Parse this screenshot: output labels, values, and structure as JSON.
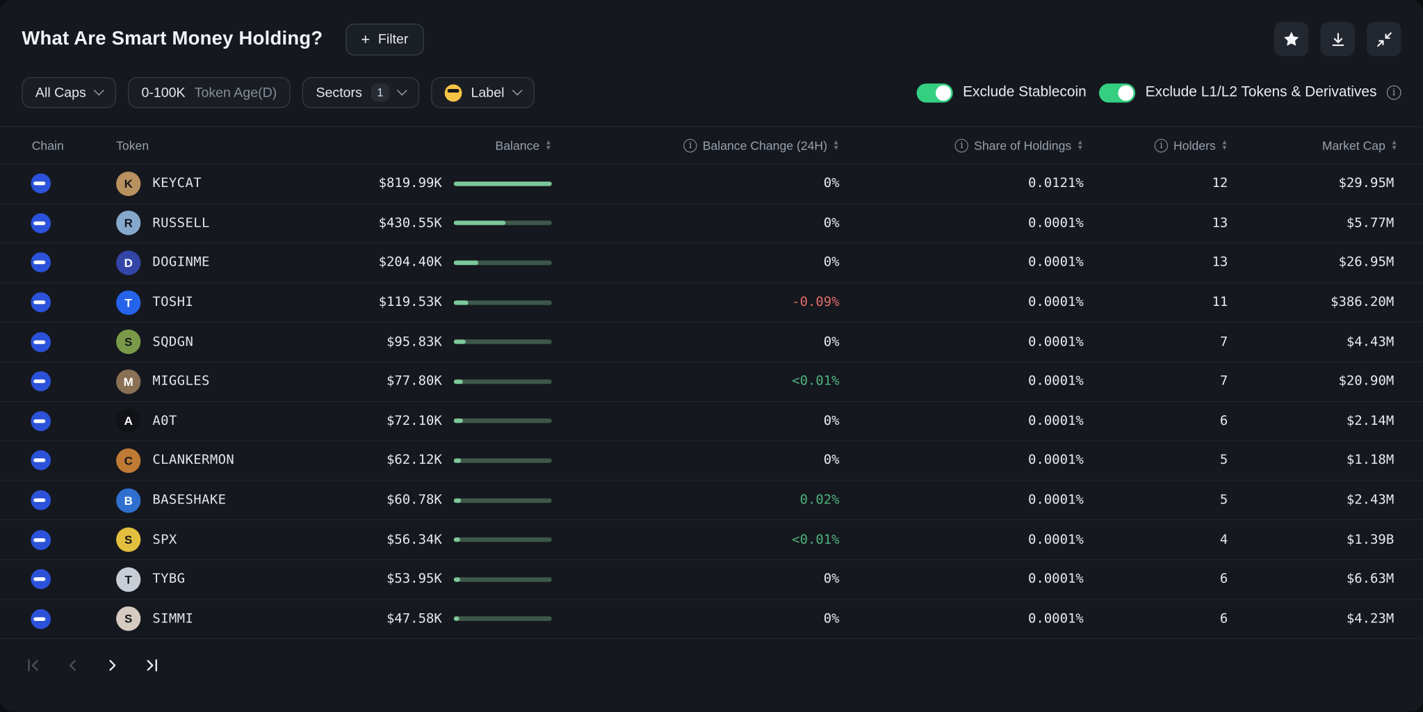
{
  "header": {
    "title": "What Are Smart Money Holding?",
    "filter_button_label": "Filter",
    "plus_glyph": "+"
  },
  "filters": {
    "market_cap_label": "All Caps",
    "token_age_value": "0-100K",
    "token_age_label": "Token Age(D)",
    "sectors_label": "Sectors",
    "sectors_badge": "1",
    "label_label": "Label",
    "toggles": [
      {
        "label": "Exclude Stablecoin",
        "on": true
      },
      {
        "label": "Exclude L1/L2 Tokens & Derivatives",
        "on": true
      }
    ],
    "info_glyph": "i"
  },
  "table": {
    "columns": {
      "chain": "Chain",
      "token": "Token",
      "balance": "Balance",
      "change": "Balance Change (24H)",
      "share": "Share of Holdings",
      "holders": "Holders",
      "market_cap": "Market Cap"
    },
    "rows": [
      {
        "token": "KEYCAT",
        "balance": "$819.99K",
        "bar_percent": 100,
        "change": "0%",
        "change_type": "neutral",
        "share": "0.0121%",
        "holders": "12",
        "market_cap": "$29.95M",
        "avatar_color": "#b9905f"
      },
      {
        "token": "RUSSELL",
        "balance": "$430.55K",
        "bar_percent": 52.5,
        "change": "0%",
        "change_type": "neutral",
        "share": "0.0001%",
        "holders": "13",
        "market_cap": "$5.77M",
        "avatar_color": "#86a8cc"
      },
      {
        "token": "DOGINME",
        "balance": "$204.40K",
        "bar_percent": 24.9,
        "change": "0%",
        "change_type": "neutral",
        "share": "0.0001%",
        "holders": "13",
        "market_cap": "$26.95M",
        "avatar_color": "#3346a8",
        "avatar_text_color": "#ffffff"
      },
      {
        "token": "TOSHI",
        "balance": "$119.53K",
        "bar_percent": 14.6,
        "change": "-0.09%",
        "change_type": "negative",
        "share": "0.0001%",
        "holders": "11",
        "market_cap": "$386.20M",
        "avatar_color": "#2563eb",
        "avatar_text_color": "#ffffff"
      },
      {
        "token": "SQDGN",
        "balance": "$95.83K",
        "bar_percent": 11.7,
        "change": "0%",
        "change_type": "neutral",
        "share": "0.0001%",
        "holders": "7",
        "market_cap": "$4.43M",
        "avatar_color": "#7a9a4a"
      },
      {
        "token": "MIGGLES",
        "balance": "$77.80K",
        "bar_percent": 9.5,
        "change": "<0.01%",
        "change_type": "positive",
        "share": "0.0001%",
        "holders": "7",
        "market_cap": "$20.90M",
        "avatar_color": "#8a7055",
        "avatar_text_color": "#ffffff"
      },
      {
        "token": "A0T",
        "balance": "$72.10K",
        "bar_percent": 8.8,
        "change": "0%",
        "change_type": "neutral",
        "share": "0.0001%",
        "holders": "6",
        "market_cap": "$2.14M",
        "avatar_color": "#101216",
        "avatar_text_color": "#ffffff"
      },
      {
        "token": "CLANKERMON",
        "balance": "$62.12K",
        "bar_percent": 7.6,
        "change": "0%",
        "change_type": "neutral",
        "share": "0.0001%",
        "holders": "5",
        "market_cap": "$1.18M",
        "avatar_color": "#c07a35"
      },
      {
        "token": "BASESHAKE",
        "balance": "$60.78K",
        "bar_percent": 7.4,
        "change": "0.02%",
        "change_type": "positive",
        "share": "0.0001%",
        "holders": "5",
        "market_cap": "$2.43M",
        "avatar_color": "#2f6fd0",
        "avatar_text_color": "#ffffff"
      },
      {
        "token": "SPX",
        "balance": "$56.34K",
        "bar_percent": 6.9,
        "change": "<0.01%",
        "change_type": "positive",
        "share": "0.0001%",
        "holders": "4",
        "market_cap": "$1.39B",
        "avatar_color": "#e3bf3e"
      },
      {
        "token": "TYBG",
        "balance": "$53.95K",
        "bar_percent": 6.6,
        "change": "0%",
        "change_type": "neutral",
        "share": "0.0001%",
        "holders": "6",
        "market_cap": "$6.63M",
        "avatar_color": "#c9ced6"
      },
      {
        "token": "SIMMI",
        "balance": "$47.58K",
        "bar_percent": 5.8,
        "change": "0%",
        "change_type": "neutral",
        "share": "0.0001%",
        "holders": "6",
        "market_cap": "$4.23M",
        "avatar_color": "#d6cbc0"
      }
    ]
  },
  "pagination": {
    "first_enabled": false,
    "prev_enabled": false,
    "next_enabled": true,
    "last_enabled": true
  },
  "colors": {
    "accent_toggle": "#35cf82",
    "positive": "#4db07e",
    "negative": "#e06b6b",
    "bar_fill": "#7cc89b",
    "bar_track": "#3d584a",
    "chain_blue": "#2b52d8"
  }
}
